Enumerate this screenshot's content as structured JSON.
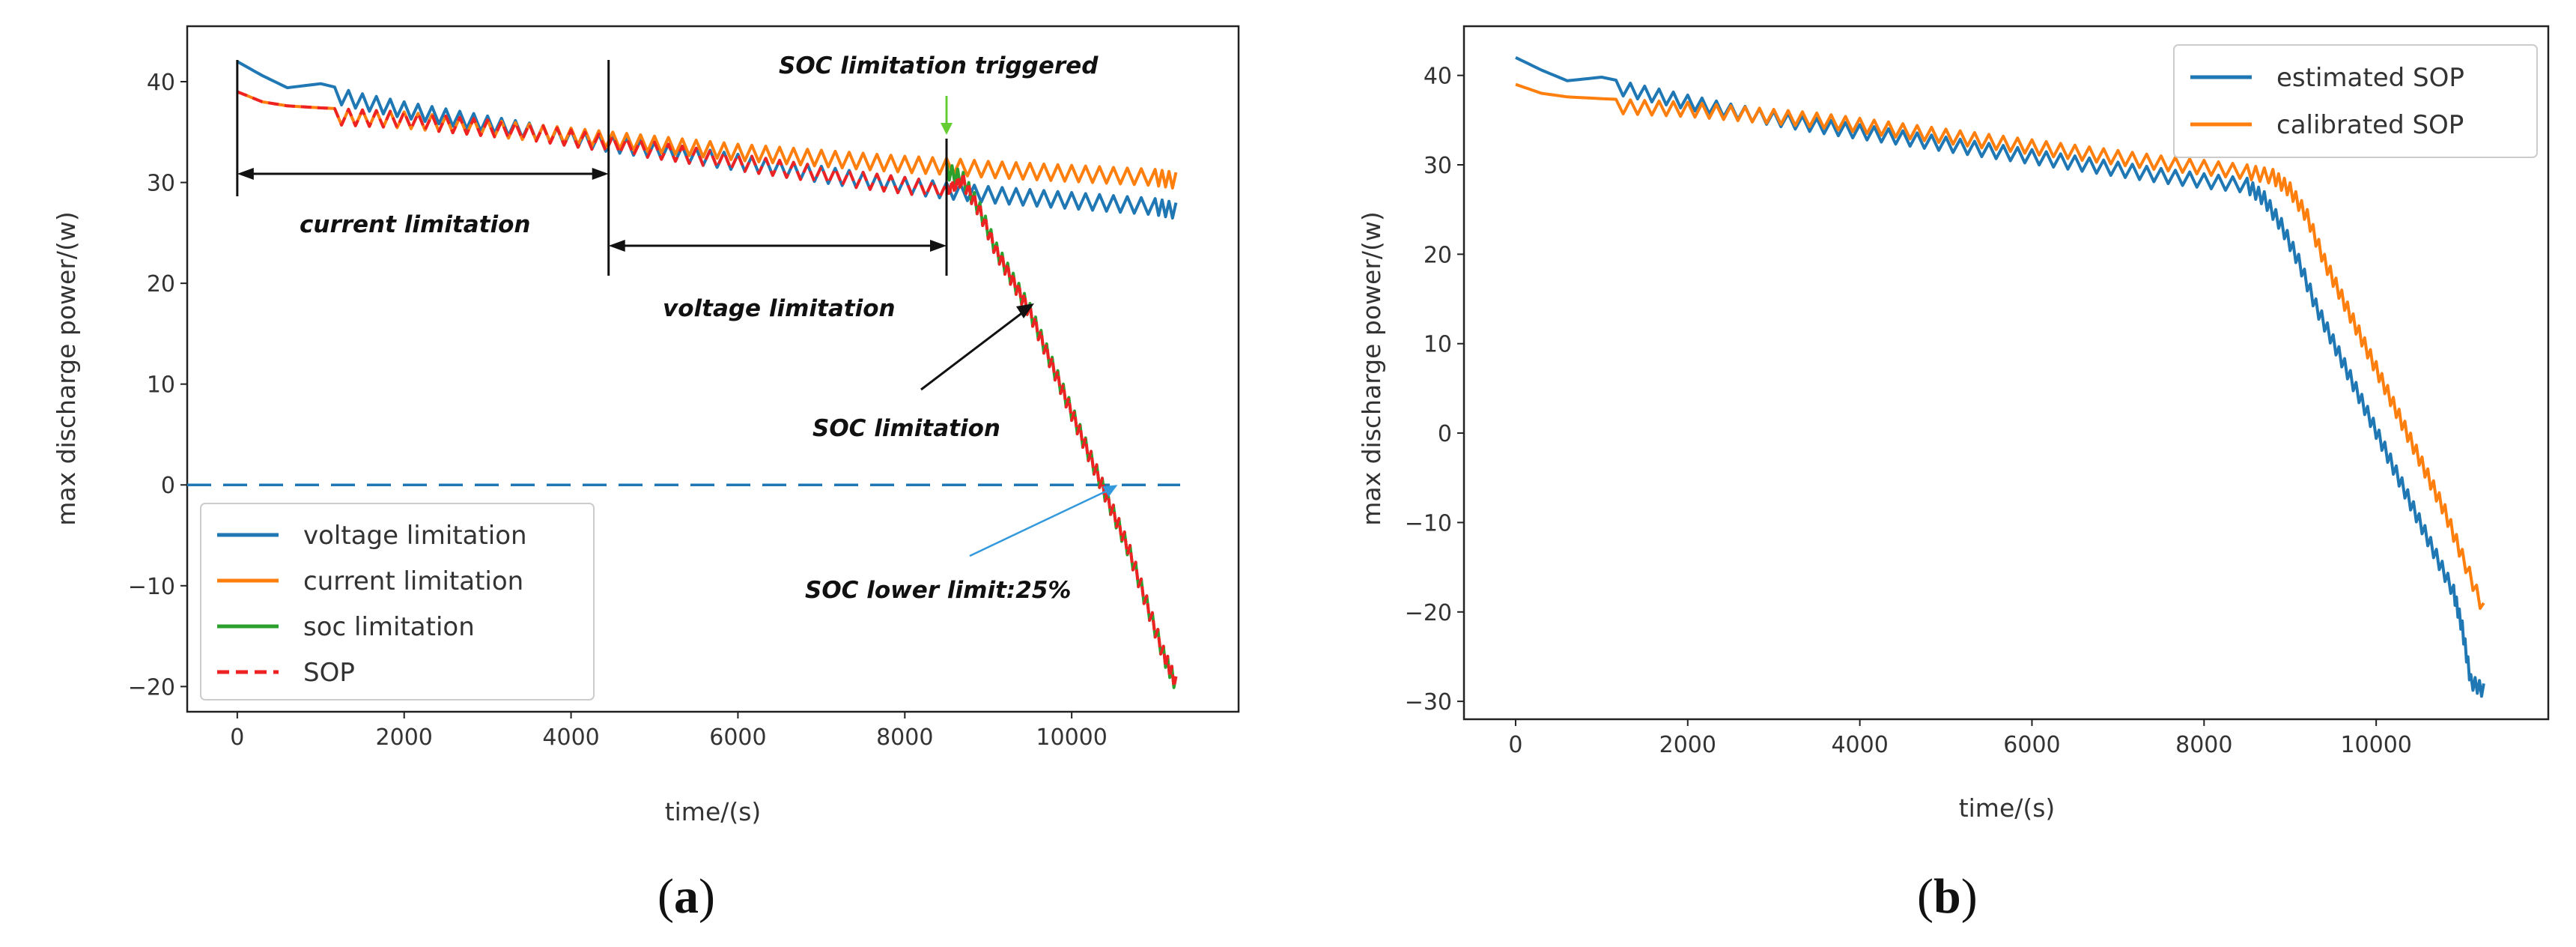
{
  "colors": {
    "blue": "#1f77b4",
    "orange": "#ff7f0e",
    "green": "#2ca02c",
    "red": "#ee2222",
    "ref_line": "#1f77b4",
    "annotation_arrow": "#111111",
    "trigger_arrow": "#66cc33"
  },
  "chart_data": [
    {
      "panel": "(a)",
      "panel_letter": "a",
      "type": "line",
      "xlabel": "time/(s)",
      "ylabel": "max discharge power/(w)",
      "xlim": [
        -600,
        12000
      ],
      "ylim": [
        -22.5,
        45.5
      ],
      "xticks": [
        0,
        2000,
        4000,
        6000,
        8000,
        10000
      ],
      "xtick_labels": [
        "0",
        "2000",
        "4000",
        "6000",
        "8000",
        "10000"
      ],
      "yticks": [
        -20,
        -10,
        0,
        10,
        20,
        30,
        40
      ],
      "ytick_labels": [
        "−20",
        "−10",
        "0",
        "10",
        "20",
        "30",
        "40"
      ],
      "legend_position": "lower-left",
      "series": [
        {
          "name": "voltage limitation",
          "color": "#1f77b4",
          "style": "solid",
          "x": [
            0,
            300,
            600,
            1000,
            1500,
            2000,
            2500,
            3000,
            3500,
            4000,
            4500,
            5000,
            5500,
            6000,
            6500,
            7000,
            7500,
            8000,
            8500,
            9000,
            9500,
            10000,
            10500,
            11000,
            11250
          ],
          "y": [
            42.0,
            40.6,
            39.4,
            39.8,
            38.8,
            38.0,
            37.3,
            36.6,
            35.9,
            35.2,
            34.6,
            34.0,
            33.4,
            32.8,
            32.2,
            31.6,
            31.0,
            30.5,
            30.0,
            29.6,
            29.3,
            29.0,
            28.7,
            28.4,
            28.0
          ]
        },
        {
          "name": "current limitation",
          "color": "#ff7f0e",
          "style": "solid",
          "x": [
            0,
            300,
            600,
            1000,
            1500,
            2000,
            2500,
            3000,
            3500,
            4000,
            4500,
            5000,
            5500,
            6000,
            6500,
            7000,
            7500,
            8000,
            8500,
            9000,
            9500,
            10000,
            10500,
            11000,
            11250
          ],
          "y": [
            39.0,
            38.0,
            37.6,
            37.4,
            37.2,
            37.0,
            36.6,
            36.2,
            35.8,
            35.4,
            35.0,
            34.6,
            34.2,
            33.8,
            33.5,
            33.2,
            32.9,
            32.6,
            32.4,
            32.1,
            31.9,
            31.7,
            31.5,
            31.3,
            31.0
          ]
        },
        {
          "name": "soc limitation",
          "color": "#2ca02c",
          "style": "solid",
          "x": [
            8500,
            8700,
            8900,
            9100,
            9300,
            9500,
            9700,
            9900,
            10100,
            10300,
            10500,
            10700,
            10900,
            11100,
            11250
          ],
          "y": [
            32.0,
            31.0,
            28.0,
            24.0,
            21.0,
            18.0,
            14.0,
            10.0,
            6.0,
            2.0,
            -2.0,
            -6.0,
            -11.0,
            -16.0,
            -19.0
          ]
        },
        {
          "name": "SOP",
          "color": "#ee2222",
          "style": "dashed",
          "x": [
            0,
            300,
            600,
            1000,
            1500,
            2000,
            2500,
            3000,
            3500,
            4000,
            4500,
            5000,
            5500,
            6000,
            6500,
            7000,
            7500,
            8000,
            8500,
            8700,
            8900,
            9100,
            9300,
            9500,
            9700,
            9900,
            10100,
            10300,
            10500,
            10700,
            10900,
            11100,
            11250
          ],
          "y": [
            39.0,
            38.0,
            37.6,
            37.4,
            37.2,
            37.0,
            36.6,
            36.2,
            35.8,
            35.2,
            34.6,
            34.0,
            33.4,
            32.8,
            32.2,
            31.6,
            31.0,
            30.5,
            30.0,
            31.0,
            28.0,
            24.0,
            21.0,
            18.0,
            14.0,
            10.0,
            6.0,
            2.0,
            -2.0,
            -6.0,
            -11.0,
            -16.0,
            -19.0
          ]
        }
      ],
      "reference_line": {
        "y": 0,
        "style": "dashed",
        "color": "#1f77b4"
      },
      "annotations": [
        {
          "text": "SOC limitation triggered"
        },
        {
          "text": "current limitation"
        },
        {
          "text": "voltage limitation"
        },
        {
          "text": "SOC limitation"
        },
        {
          "text": "SOC lower limit:25%"
        }
      ],
      "region_markers_x": [
        0,
        4450,
        8500
      ]
    },
    {
      "panel": "(b)",
      "panel_letter": "b",
      "type": "line",
      "xlabel": "time/(s)",
      "ylabel": "max discharge power/(w)",
      "xlim": [
        -600,
        12000
      ],
      "ylim": [
        -32,
        45.5
      ],
      "xticks": [
        0,
        2000,
        4000,
        6000,
        8000,
        10000
      ],
      "xtick_labels": [
        "0",
        "2000",
        "4000",
        "6000",
        "8000",
        "10000"
      ],
      "yticks": [
        -30,
        -20,
        -10,
        0,
        10,
        20,
        30,
        40
      ],
      "ytick_labels": [
        "−30",
        "−20",
        "−10",
        "0",
        "10",
        "20",
        "30",
        "40"
      ],
      "legend_position": "top-right",
      "series": [
        {
          "name": "estimated SOP",
          "color": "#1f77b4",
          "style": "solid",
          "x": [
            0,
            300,
            600,
            1000,
            1500,
            2000,
            2500,
            3000,
            3500,
            4000,
            4500,
            5000,
            5500,
            6000,
            6500,
            7000,
            7500,
            8000,
            8500,
            8700,
            8900,
            9100,
            9300,
            9500,
            9700,
            9900,
            10100,
            10300,
            10500,
            10700,
            10900,
            11000,
            11100,
            11250
          ],
          "y": [
            42.0,
            40.6,
            39.4,
            39.8,
            38.8,
            37.8,
            36.8,
            36.0,
            35.2,
            34.5,
            33.8,
            33.1,
            32.4,
            31.7,
            31.0,
            30.3,
            29.6,
            29.0,
            28.5,
            27.0,
            24.0,
            20.0,
            15.0,
            11.0,
            7.0,
            3.0,
            -1.0,
            -5.0,
            -9.0,
            -13.0,
            -17.0,
            -21.0,
            -27.0,
            -28.0
          ]
        },
        {
          "name": "calibrated SOP",
          "color": "#ff7f0e",
          "style": "solid",
          "x": [
            0,
            300,
            600,
            1000,
            1500,
            2000,
            2500,
            3000,
            3500,
            4000,
            4500,
            5000,
            5500,
            6000,
            6500,
            7000,
            7500,
            8000,
            8500,
            8800,
            9000,
            9200,
            9400,
            9600,
            9800,
            10000,
            10200,
            10400,
            10600,
            10800,
            11000,
            11250
          ],
          "y": [
            39.0,
            38.0,
            37.6,
            37.4,
            37.2,
            37.0,
            36.6,
            36.2,
            35.8,
            35.2,
            34.6,
            34.0,
            33.4,
            32.8,
            32.2,
            31.6,
            31.0,
            30.5,
            30.0,
            29.5,
            28.0,
            25.0,
            20.0,
            16.0,
            12.0,
            8.0,
            4.0,
            0.0,
            -4.0,
            -8.0,
            -13.0,
            -19.0
          ]
        }
      ]
    }
  ]
}
